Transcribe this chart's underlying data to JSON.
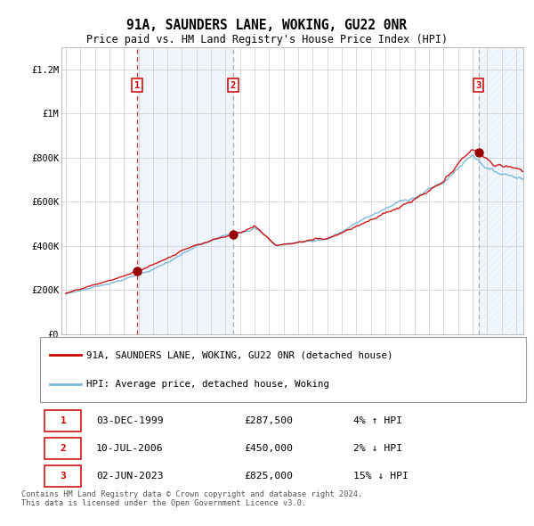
{
  "title": "91A, SAUNDERS LANE, WOKING, GU22 0NR",
  "subtitle": "Price paid vs. HM Land Registry's House Price Index (HPI)",
  "legend_line1": "91A, SAUNDERS LANE, WOKING, GU22 0NR (detached house)",
  "legend_line2": "HPI: Average price, detached house, Woking",
  "footnote1": "Contains HM Land Registry data © Crown copyright and database right 2024.",
  "footnote2": "This data is licensed under the Open Government Licence v3.0.",
  "transactions": [
    {
      "num": 1,
      "date": "03-DEC-1999",
      "price": 287500,
      "pct": "4%",
      "dir": "↑ HPI"
    },
    {
      "num": 2,
      "date": "10-JUL-2006",
      "price": 450000,
      "pct": "2%",
      "dir": "↓ HPI"
    },
    {
      "num": 3,
      "date": "02-JUN-2023",
      "price": 825000,
      "pct": "15%",
      "dir": "↓ HPI"
    }
  ],
  "t1_year": 1999.92,
  "t2_year": 2006.52,
  "t3_year": 2023.42,
  "hpi_color": "#7ab8d9",
  "price_color": "#cc0000",
  "dot_color": "#990000",
  "bg_shaded": "#ddeaf7",
  "grid_color": "#cccccc",
  "ylim_max": 1300000,
  "xlim_start": 1994.7,
  "xlim_end": 2026.5,
  "yticks": [
    0,
    200000,
    400000,
    600000,
    800000,
    1000000,
    1200000
  ],
  "ytick_labels": [
    "£0",
    "£200K",
    "£400K",
    "£600K",
    "£800K",
    "£1M",
    "£1.2M"
  ]
}
